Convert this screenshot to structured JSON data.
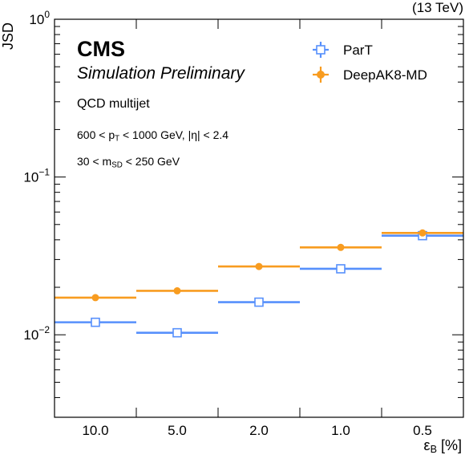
{
  "header": {
    "cms_label": "CMS",
    "sub_label": "Simulation Preliminary",
    "energy_label": "(13 TeV)"
  },
  "annotations": {
    "sample": "QCD multijet",
    "pt_cut": {
      "pre": "600 < p",
      "sub": "T",
      "post": " < 1000 GeV, |η| < 2.4"
    },
    "mass_cut": {
      "pre": "30 < m",
      "sub": "SD",
      "post": " < 250 GeV"
    }
  },
  "chart_data": {
    "type": "scatter",
    "title": "",
    "ylabel": "JSD",
    "xlabel": {
      "pre": "ε",
      "sub": "B",
      "post": " [%]"
    },
    "categories": [
      "10.0",
      "5.0",
      "2.0",
      "1.0",
      "0.5"
    ],
    "y_scale": "log",
    "ylim": [
      0.003,
      1
    ],
    "y_ticks": [
      {
        "value": 1,
        "base": "10",
        "exp": "0"
      },
      {
        "value": 0.1,
        "base": "10",
        "exp": "−1"
      },
      {
        "value": 0.01,
        "base": "10",
        "exp": "−2"
      }
    ],
    "grid": false,
    "legend_position": "top-right",
    "series": [
      {
        "name": "ParT",
        "color": "#5790fc",
        "marker": "open-square",
        "values": [
          0.012,
          0.0103,
          0.0161,
          0.0262,
          0.0425
        ]
      },
      {
        "name": "DeepAK8-MD",
        "color": "#f89c20",
        "marker": "filled-circle",
        "values": [
          0.0172,
          0.019,
          0.0271,
          0.0358,
          0.0442
        ]
      }
    ]
  }
}
